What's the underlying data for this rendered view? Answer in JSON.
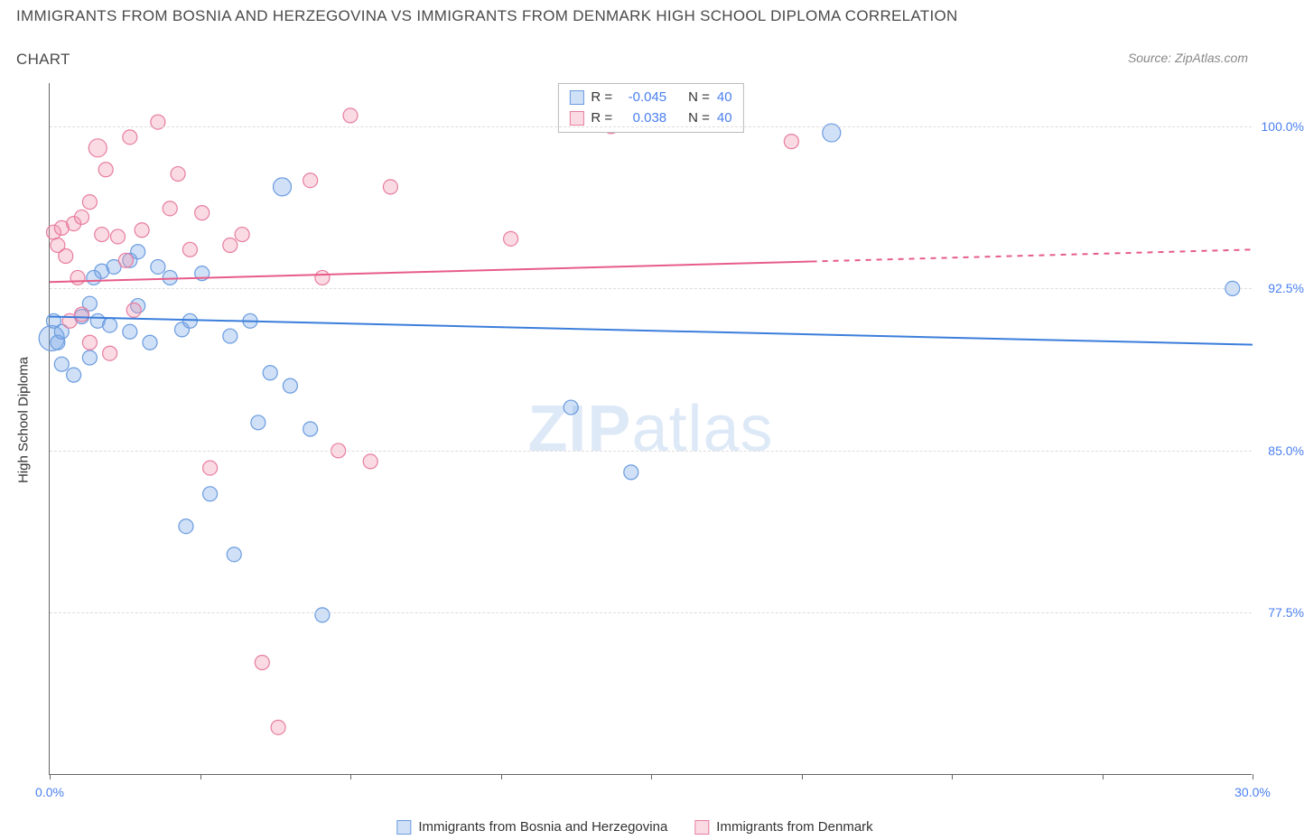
{
  "title": "IMMIGRANTS FROM BOSNIA AND HERZEGOVINA VS IMMIGRANTS FROM DENMARK HIGH SCHOOL DIPLOMA CORRELATION",
  "subtitle": "CHART",
  "source": "Source: ZipAtlas.com",
  "watermark_bold": "ZIP",
  "watermark_light": "atlas",
  "y_axis_title": "High School Diploma",
  "chart": {
    "type": "scatter",
    "xlim": [
      0,
      30
    ],
    "ylim": [
      70,
      102
    ],
    "x_ticks": [
      0,
      3.75,
      7.5,
      11.25,
      15,
      18.75,
      22.5,
      26.25,
      30
    ],
    "x_tick_labels": {
      "0": "0.0%",
      "30": "30.0%"
    },
    "y_ticks": [
      77.5,
      85.0,
      92.5,
      100.0
    ],
    "y_tick_labels": [
      "77.5%",
      "85.0%",
      "92.5%",
      "100.0%"
    ],
    "background_color": "#ffffff",
    "grid_color": "#dddddd",
    "axis_color": "#666666",
    "series": [
      {
        "name": "Immigrants from Bosnia and Herzegovina",
        "color_fill": "rgba(120,165,230,0.35)",
        "color_stroke": "#6a9be0",
        "marker_radius": 8,
        "R": "-0.045",
        "N": "40",
        "trend": {
          "x1": 0,
          "y1": 91.2,
          "x2": 30,
          "y2": 89.9,
          "solid_to_x": 30,
          "color": "#3b7edb",
          "width": 2
        },
        "points": [
          [
            0.05,
            90.2,
            14
          ],
          [
            0.1,
            91.0
          ],
          [
            0.2,
            90.0
          ],
          [
            0.3,
            90.5
          ],
          [
            0.3,
            89.0
          ],
          [
            0.6,
            88.5
          ],
          [
            0.8,
            91.2
          ],
          [
            1.0,
            91.8
          ],
          [
            1.0,
            89.3
          ],
          [
            1.2,
            91.0
          ],
          [
            1.3,
            93.3
          ],
          [
            1.5,
            90.8
          ],
          [
            1.6,
            93.5
          ],
          [
            1.1,
            93.0
          ],
          [
            2.0,
            93.8
          ],
          [
            2.0,
            90.5
          ],
          [
            2.2,
            94.2
          ],
          [
            2.2,
            91.7
          ],
          [
            2.5,
            90.0
          ],
          [
            2.7,
            93.5
          ],
          [
            3.0,
            93.0
          ],
          [
            3.3,
            90.6
          ],
          [
            3.4,
            81.5
          ],
          [
            3.5,
            91.0
          ],
          [
            3.8,
            93.2
          ],
          [
            4.0,
            83.0
          ],
          [
            4.5,
            90.3
          ],
          [
            4.6,
            80.2
          ],
          [
            5.0,
            91.0
          ],
          [
            5.2,
            86.3
          ],
          [
            5.5,
            88.6
          ],
          [
            5.8,
            97.2,
            10
          ],
          [
            6.0,
            88.0
          ],
          [
            6.5,
            86.0
          ],
          [
            6.8,
            77.4
          ],
          [
            13.0,
            87.0
          ],
          [
            14.5,
            84.0
          ],
          [
            19.5,
            99.7,
            10
          ],
          [
            29.5,
            92.5
          ]
        ]
      },
      {
        "name": "Immigrants from Denmark",
        "color_fill": "rgba(240,150,175,0.35)",
        "color_stroke": "#e77da0",
        "marker_radius": 8,
        "R": "0.038",
        "N": "40",
        "trend": {
          "x1": 0,
          "y1": 92.8,
          "x2": 30,
          "y2": 94.3,
          "solid_to_x": 19,
          "color": "#e75c8a",
          "width": 2
        },
        "points": [
          [
            0.1,
            95.1
          ],
          [
            0.2,
            94.5
          ],
          [
            0.3,
            95.3
          ],
          [
            0.4,
            94.0
          ],
          [
            0.5,
            91.0
          ],
          [
            0.6,
            95.5
          ],
          [
            0.7,
            93.0
          ],
          [
            0.8,
            91.3
          ],
          [
            0.8,
            95.8
          ],
          [
            1.0,
            96.5
          ],
          [
            1.0,
            90.0
          ],
          [
            1.2,
            99.0,
            10
          ],
          [
            1.3,
            95.0
          ],
          [
            1.4,
            98.0
          ],
          [
            1.5,
            89.5
          ],
          [
            1.7,
            94.9
          ],
          [
            1.9,
            93.8
          ],
          [
            2.0,
            99.5
          ],
          [
            2.1,
            91.5
          ],
          [
            2.3,
            95.2
          ],
          [
            2.7,
            100.2
          ],
          [
            3.0,
            96.2
          ],
          [
            3.2,
            97.8
          ],
          [
            3.5,
            94.3
          ],
          [
            3.8,
            96.0
          ],
          [
            4.0,
            84.2
          ],
          [
            4.5,
            94.5
          ],
          [
            4.8,
            95.0
          ],
          [
            5.3,
            75.2
          ],
          [
            5.7,
            72.2
          ],
          [
            6.5,
            97.5
          ],
          [
            6.8,
            93.0
          ],
          [
            7.2,
            85.0
          ],
          [
            7.5,
            100.5
          ],
          [
            8.0,
            84.5
          ],
          [
            8.5,
            97.2
          ],
          [
            11.5,
            94.8
          ],
          [
            14.0,
            100.0
          ],
          [
            18.5,
            99.3
          ]
        ]
      }
    ]
  },
  "stats_box": {
    "rows": [
      {
        "swatch_fill": "rgba(120,165,230,0.35)",
        "swatch_border": "#6a9be0",
        "R_label": "R =",
        "R_val": "-0.045",
        "N_label": "N =",
        "N_val": "40"
      },
      {
        "swatch_fill": "rgba(240,150,175,0.35)",
        "swatch_border": "#e77da0",
        "R_label": "R =",
        "R_val": "0.038",
        "N_label": "N =",
        "N_val": "40"
      }
    ]
  },
  "bottom_legend": [
    {
      "swatch_fill": "rgba(120,165,230,0.35)",
      "swatch_border": "#6a9be0",
      "label": "Immigrants from Bosnia and Herzegovina"
    },
    {
      "swatch_fill": "rgba(240,150,175,0.35)",
      "swatch_border": "#e77da0",
      "label": "Immigrants from Denmark"
    }
  ]
}
